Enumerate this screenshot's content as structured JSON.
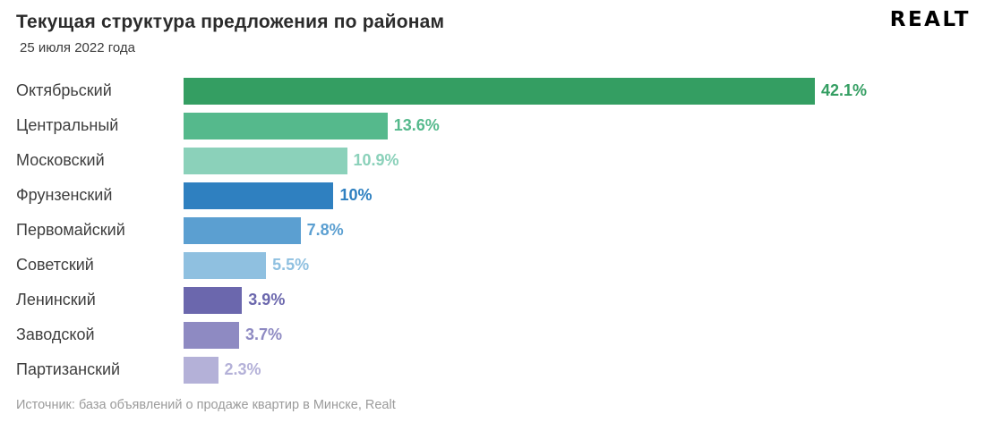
{
  "header": {
    "title": "Текущая структура предложения по районам",
    "subtitle": "25 июля 2022 года",
    "logo_text": "Realt"
  },
  "chart_data": {
    "type": "bar",
    "orientation": "horizontal",
    "title": "Текущая структура предложения по районам",
    "date": "25 июля 2022 года",
    "xlabel": "",
    "ylabel": "",
    "xlim": [
      0,
      42.1
    ],
    "grid": false,
    "legend": "none",
    "categories": [
      "Октябрьский",
      "Центральный",
      "Московский",
      "Фрунзенский",
      "Первомайский",
      "Советский",
      "Ленинский",
      "Заводской",
      "Партизанский"
    ],
    "values": [
      42.1,
      13.6,
      10.9,
      10,
      7.8,
      5.5,
      3.9,
      3.7,
      2.3
    ],
    "value_labels": [
      "42.1%",
      "13.6%",
      "10.9%",
      "10%",
      "7.8%",
      "5.5%",
      "3.9%",
      "3.7%",
      "2.3%"
    ],
    "bar_colors": [
      "#349e62",
      "#55b98c",
      "#8bd1ba",
      "#2f80c0",
      "#5b9fd1",
      "#8fc0e0",
      "#6b67ad",
      "#8e8ac2",
      "#b4b1d8"
    ]
  },
  "footer": {
    "source": "Источник: база объявлений о продаже квартир в Минске, Realt"
  }
}
